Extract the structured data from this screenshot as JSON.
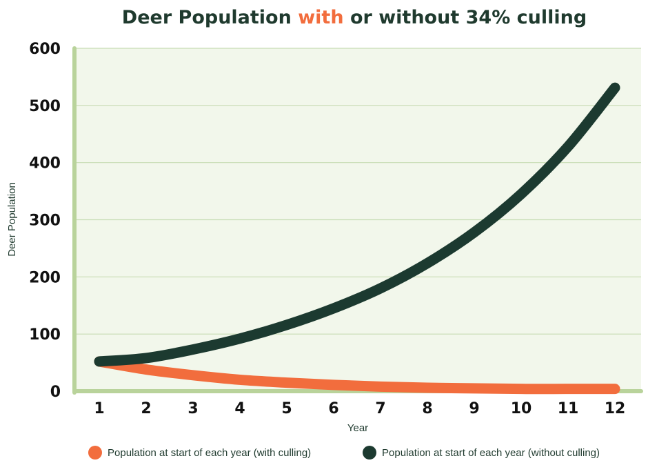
{
  "chart_data": {
    "type": "line",
    "title": {
      "prefix": "Deer Population ",
      "highlight": "with",
      "suffix": " or without 34% culling"
    },
    "xlabel": "Year",
    "ylabel": "Deer Population",
    "x": [
      1,
      2,
      3,
      4,
      5,
      6,
      7,
      8,
      9,
      10,
      11,
      12
    ],
    "ylim": [
      0,
      600
    ],
    "yticks": [
      0,
      100,
      200,
      300,
      400,
      500,
      600
    ],
    "grid": true,
    "legend_position": "bottom",
    "series": [
      {
        "name": "Population at start of each year (with culling)",
        "color": "#f26d3d",
        "values": [
          52,
          38,
          28,
          20,
          15,
          11,
          8,
          6,
          5,
          4,
          4,
          4
        ]
      },
      {
        "name": "Population at start of each year (without culling)",
        "color": "#1c3a30",
        "values": [
          52,
          58,
          73,
          92,
          116,
          145,
          180,
          224,
          278,
          345,
          428,
          531
        ]
      }
    ],
    "colors": {
      "title_highlight": "#f26d3d",
      "title_text": "#1f3a2e",
      "plot_background": "#f2f7eb",
      "grid": "#c7dcb3",
      "axis": "#b9d39b"
    }
  }
}
